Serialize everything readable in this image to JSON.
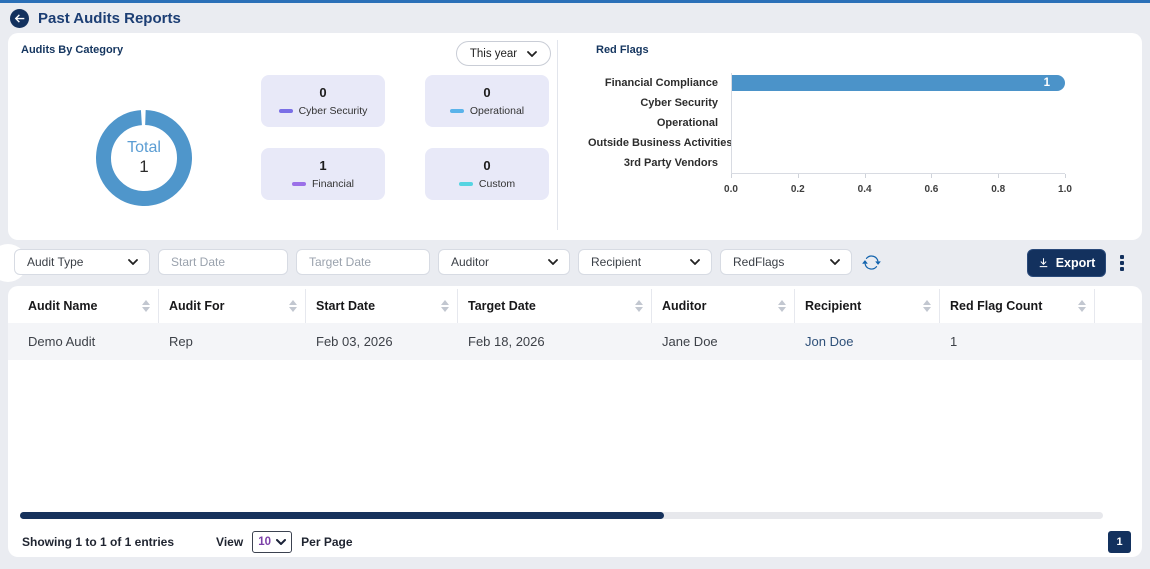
{
  "header": {
    "title": "Past Audits Reports"
  },
  "audits_panel": {
    "title": "Audits By Category",
    "period_select_value": "This year",
    "donut_center_label": "Total",
    "donut_total": "1"
  },
  "red_flags_panel": {
    "title": "Red Flags"
  },
  "chart_data": [
    {
      "type": "pie",
      "subtype": "donut",
      "title": "Audits By Category",
      "center_label": "Total",
      "total": 1,
      "categories": [
        "Cyber Security",
        "Operational",
        "Financial",
        "Custom"
      ],
      "values": [
        0,
        0,
        1,
        0
      ],
      "colors": [
        "#7a6fe6",
        "#5ab3ea",
        "#9b70e8",
        "#55d4e2"
      ],
      "ring_color": "#4f96cb"
    },
    {
      "type": "bar",
      "orientation": "horizontal",
      "title": "Red Flags",
      "categories": [
        "Financial Compliance",
        "Cyber Security",
        "Operational",
        "Outside Business Activities",
        "3rd Party Vendors"
      ],
      "values": [
        1,
        0,
        0,
        0,
        0
      ],
      "xlim": [
        0,
        1
      ],
      "xticks": [
        "0.0",
        "0.2",
        "0.4",
        "0.6",
        "0.8",
        "1.0"
      ],
      "bar_color": "#4b93c9",
      "data_labels": true,
      "grid": false,
      "legend": "none"
    }
  ],
  "filters": {
    "audit_type": "Audit Type",
    "start_date_placeholder": "Start Date",
    "target_date_placeholder": "Target Date",
    "auditor": "Auditor",
    "recipient": "Recipient",
    "red_flags": "RedFlags",
    "export_label": "Export"
  },
  "table": {
    "columns": [
      "Audit Name",
      "Audit For",
      "Start Date",
      "Target Date",
      "Auditor",
      "Recipient",
      "Red Flag Count"
    ],
    "rows": [
      [
        "Demo Audit",
        "Rep",
        "Feb 03, 2026",
        "Feb 18, 2026",
        "Jane Doe",
        "Jon Doe",
        "1"
      ]
    ]
  },
  "footer": {
    "showing_text": "Showing 1 to 1 of 1 entries",
    "view_label": "View",
    "per_page_value": "10",
    "per_page_label": "Per Page",
    "page_number": "1"
  },
  "icons": {
    "back": "arrow-left-icon",
    "select_caret": "chevron-down-icon",
    "refresh": "refresh-icon",
    "export": "download-icon",
    "more": "kebab-menu-icon",
    "sort": "sort-arrows-icon"
  },
  "colors": {
    "accent_navy": "#13315e",
    "title_blue": "#1c3e74",
    "chart_blue": "#4b93c9",
    "stat_card_bg": "#e8e9f8",
    "top_line": "#2b70b8"
  }
}
